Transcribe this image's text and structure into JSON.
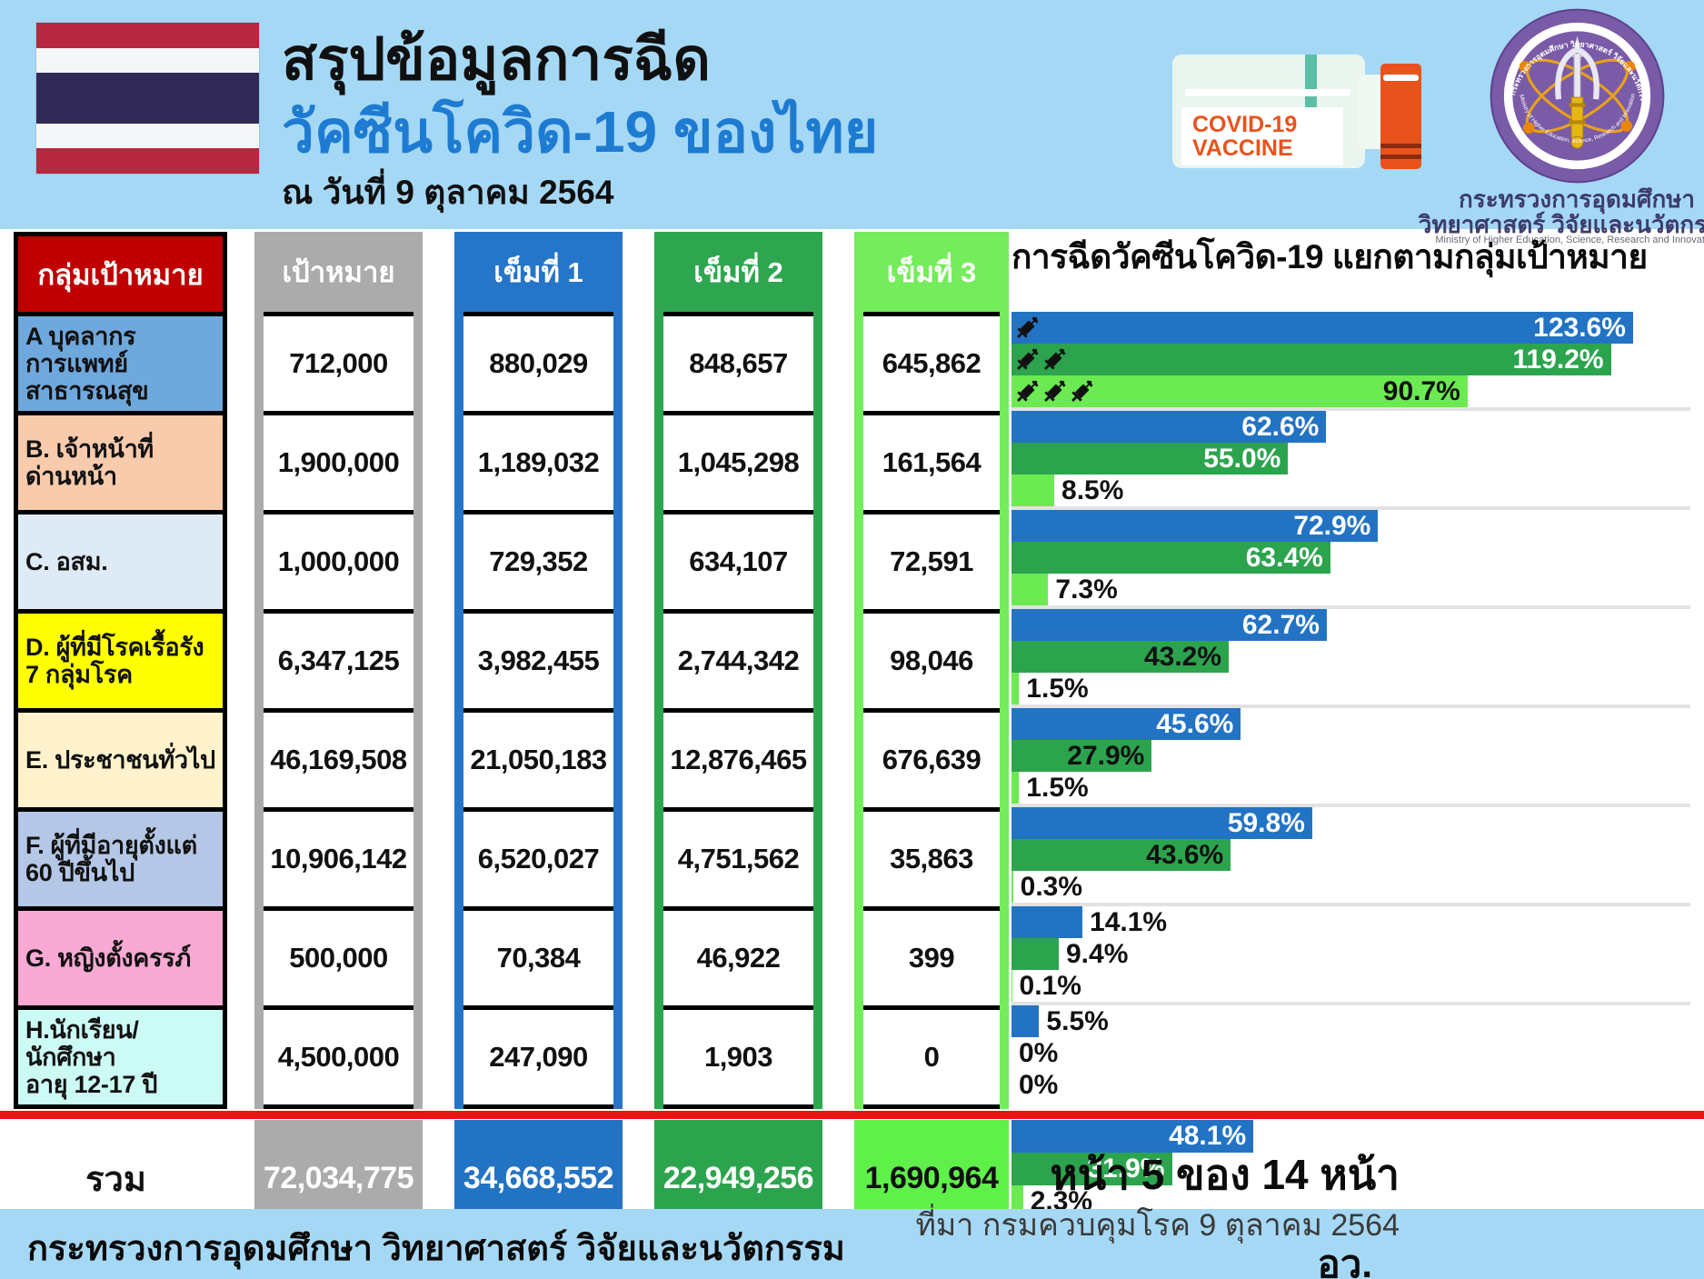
{
  "header": {
    "title_line1": "สรุปข้อมูลการฉีด",
    "title_line2": "วัคซีนโควิด-19 ของไทย",
    "date_line": "ณ วันที่ 9 ตุลาคม 2564",
    "vial": {
      "label_line1": "COVID-19",
      "label_line2": "VACCINE"
    },
    "logo": {
      "ring_text_top": "กระทรวงการอุดมศึกษา วิทยาศาสตร์ วิจัยและนวัตกรรม",
      "ring_text_bottom": "Ministry of Higher Education, Science, Research and Innovation",
      "name_line1": "กระทรวงการอุดมศึกษา",
      "name_line2": "วิทยาศาสตร์ วิจัยและนวัตกรรม",
      "name_line3": "Ministry of Higher Education, Science, Research and Innovation"
    }
  },
  "colors": {
    "band_blue": "#A5D8F5",
    "title_blue": "#1E7BD2",
    "header_red": "#C00000",
    "gray": "#ABABAB",
    "dose1_blue": "#2575C8",
    "dose2_green": "#2EA64F",
    "dose3_light_green": "#74EC5B",
    "bar_blue": "#2373C4",
    "bar_green": "#2CA44E",
    "bar_light_green": "#6BEA51",
    "total_dose3_green": "#5FF04A",
    "red_line": "#EE1212"
  },
  "table": {
    "headers": {
      "group": "กลุ่มเป้าหมาย",
      "target": "เป้าหมาย",
      "dose1": "เข็มที่ 1",
      "dose2": "เข็มที่ 2",
      "dose3": "เข็มที่ 3"
    },
    "headers_bg": {
      "group": "#C00000",
      "target": "#ABABAB",
      "dose1": "#2575C8",
      "dose2": "#2EA64F",
      "dose3": "#74EC5B"
    },
    "rows": [
      {
        "group": "A บุคลากร\nการแพทย์\nสาธารณสุข",
        "bg": "#6FA8DC",
        "target": "712,000",
        "dose1": "880,029",
        "dose2": "848,657",
        "dose3": "645,862"
      },
      {
        "group": "B. เจ้าหน้าที่\nด่านหน้า",
        "bg": "#F8CBAD",
        "target": "1,900,000",
        "dose1": "1,189,032",
        "dose2": "1,045,298",
        "dose3": "161,564"
      },
      {
        "group": "C. อสม.",
        "bg": "#DEEAF6",
        "target": "1,000,000",
        "dose1": "729,352",
        "dose2": "634,107",
        "dose3": "72,591"
      },
      {
        "group": "D. ผู้ที่มีโรคเรื้อรัง\n7 กลุ่มโรค",
        "bg": "#FFFF00",
        "target": "6,347,125",
        "dose1": "3,982,455",
        "dose2": "2,744,342",
        "dose3": "98,046"
      },
      {
        "group": "E. ประชาชนทั่วไป",
        "bg": "#FFF2CC",
        "target": "46,169,508",
        "dose1": "21,050,183",
        "dose2": "12,876,465",
        "dose3": "676,639"
      },
      {
        "group": "F. ผู้ที่มีอายุตั้งแต่\n60 ปีขึ้นไป",
        "bg": "#B4C7E7",
        "target": "10,906,142",
        "dose1": "6,520,027",
        "dose2": "4,751,562",
        "dose3": "35,863"
      },
      {
        "group": "G. หญิงตั้งครรภ์",
        "bg": "#F8A9D4",
        "target": "500,000",
        "dose1": "70,384",
        "dose2": "46,922",
        "dose3": "399"
      },
      {
        "group": "H.นักเรียน/\nนักศึกษา\nอายุ 12-17 ปี",
        "bg": "#CCFBF5",
        "target": "4,500,000",
        "dose1": "247,090",
        "dose2": "1,903",
        "dose3": "0"
      }
    ],
    "total": {
      "label": "รวม",
      "target": {
        "value": "72,034,775",
        "bg": "#ABABAB"
      },
      "dose1": {
        "value": "34,668,552",
        "bg": "#2373C4"
      },
      "dose2": {
        "value": "22,949,256",
        "bg": "#2CA44E"
      },
      "dose3": {
        "value": "1,690,964",
        "bg": "#5FF04A"
      }
    }
  },
  "chart": {
    "title": "การฉีดวัคซีนโควิด-19 แยกตามกลุ่มเป้าหมาย",
    "groups": [
      {
        "bars": [
          {
            "pct": 123.6,
            "label": "123.6%",
            "pos": "in",
            "label_color": "#FFFFFF",
            "color": "#2373C4"
          },
          {
            "pct": 119.2,
            "label": "119.2%",
            "pos": "in",
            "label_color": "#FFFFFF",
            "color": "#2CA44E"
          },
          {
            "pct": 90.7,
            "label": "90.7%",
            "pos": "in",
            "label_color": "#111111",
            "color": "#6BEA51"
          }
        ]
      },
      {
        "bars": [
          {
            "pct": 62.6,
            "label": "62.6%",
            "pos": "in",
            "label_color": "#FFFFFF",
            "color": "#2373C4"
          },
          {
            "pct": 55.0,
            "label": "55.0%",
            "pos": "in",
            "label_color": "#FFFFFF",
            "color": "#2CA44E"
          },
          {
            "pct": 8.5,
            "label": "8.5%",
            "pos": "out",
            "label_color": "#111111",
            "color": "#6BEA51"
          }
        ]
      },
      {
        "bars": [
          {
            "pct": 72.9,
            "label": "72.9%",
            "pos": "in",
            "label_color": "#FFFFFF",
            "color": "#2373C4"
          },
          {
            "pct": 63.4,
            "label": "63.4%",
            "pos": "in",
            "label_color": "#FFFFFF",
            "color": "#2CA44E"
          },
          {
            "pct": 7.3,
            "label": "7.3%",
            "pos": "out",
            "label_color": "#111111",
            "color": "#6BEA51"
          }
        ]
      },
      {
        "bars": [
          {
            "pct": 62.7,
            "label": "62.7%",
            "pos": "in",
            "label_color": "#FFFFFF",
            "color": "#2373C4"
          },
          {
            "pct": 43.2,
            "label": "43.2%",
            "pos": "in",
            "label_color": "#111111",
            "color": "#2CA44E"
          },
          {
            "pct": 1.5,
            "label": "1.5%",
            "pos": "out",
            "label_color": "#111111",
            "color": "#6BEA51"
          }
        ]
      },
      {
        "bars": [
          {
            "pct": 45.6,
            "label": "45.6%",
            "pos": "in",
            "label_color": "#FFFFFF",
            "color": "#2373C4"
          },
          {
            "pct": 27.9,
            "label": "27.9%",
            "pos": "in",
            "label_color": "#111111",
            "color": "#2CA44E"
          },
          {
            "pct": 1.5,
            "label": "1.5%",
            "pos": "out",
            "label_color": "#111111",
            "color": "#6BEA51"
          }
        ]
      },
      {
        "bars": [
          {
            "pct": 59.8,
            "label": "59.8%",
            "pos": "in",
            "label_color": "#FFFFFF",
            "color": "#2373C4"
          },
          {
            "pct": 43.6,
            "label": "43.6%",
            "pos": "in",
            "label_color": "#111111",
            "color": "#2CA44E"
          },
          {
            "pct": 0.3,
            "label": "0.3%",
            "pos": "out",
            "label_color": "#111111",
            "color": "#6BEA51"
          }
        ]
      },
      {
        "bars": [
          {
            "pct": 14.1,
            "label": "14.1%",
            "pos": "out",
            "label_color": "#111111",
            "color": "#2373C4"
          },
          {
            "pct": 9.4,
            "label": "9.4%",
            "pos": "out",
            "label_color": "#111111",
            "color": "#2CA44E"
          },
          {
            "pct": 0.1,
            "label": "0.1%",
            "pos": "out",
            "label_color": "#111111",
            "color": "#6BEA51"
          }
        ]
      },
      {
        "bars": [
          {
            "pct": 5.5,
            "label": "5.5%",
            "pos": "out",
            "label_color": "#111111",
            "color": "#2373C4"
          },
          {
            "pct": 0,
            "label": "0%",
            "pos": "out",
            "label_color": "#111111",
            "color": "#2CA44E"
          },
          {
            "pct": 0,
            "label": "0%",
            "pos": "out",
            "label_color": "#111111",
            "color": "#6BEA51"
          }
        ]
      }
    ],
    "total_bars": [
      {
        "pct": 48.1,
        "label": "48.1%",
        "pos": "in",
        "label_color": "#FFFFFF",
        "color": "#2373C4"
      },
      {
        "pct": 31.9,
        "label": "31.9%",
        "pos": "in",
        "label_color": "#FFFFFF",
        "color": "#2CA44E"
      },
      {
        "pct": 2.3,
        "label": "2.3%",
        "pos": "out",
        "label_color": "#111111",
        "color": "#6BEA51"
      }
    ]
  },
  "chart_data": {
    "type": "bar",
    "orientation": "horizontal",
    "title": "การฉีดวัคซีนโควิด-19 แยกตามกลุ่มเป้าหมาย",
    "categories": [
      "A บุคลากรการแพทย์ สาธารณสุข",
      "B. เจ้าหน้าที่ด่านหน้า",
      "C. อสม.",
      "D. ผู้ที่มีโรคเรื้อรัง 7 กลุ่มโรค",
      "E. ประชาชนทั่วไป",
      "F. ผู้ที่มีอายุตั้งแต่ 60 ปีขึ้นไป",
      "G. หญิงตั้งครรภ์",
      "H.นักเรียน/นักศึกษา อายุ 12-17 ปี",
      "รวม"
    ],
    "series": [
      {
        "name": "เข็มที่ 1",
        "color": "#2373C4",
        "values": [
          123.6,
          62.6,
          72.9,
          62.7,
          45.6,
          59.8,
          14.1,
          5.5,
          48.1
        ]
      },
      {
        "name": "เข็มที่ 2",
        "color": "#2CA44E",
        "values": [
          119.2,
          55.0,
          63.4,
          43.2,
          27.9,
          43.6,
          9.4,
          0,
          31.9
        ]
      },
      {
        "name": "เข็มที่ 3",
        "color": "#6BEA51",
        "values": [
          90.7,
          8.5,
          7.3,
          1.5,
          1.5,
          0.3,
          0.1,
          0,
          2.3
        ]
      }
    ],
    "unit": "%",
    "xlim": [
      0,
      135
    ],
    "grid": false,
    "legend": "none",
    "targets": [
      712000,
      1900000,
      1000000,
      6347125,
      46169508,
      10906142,
      500000,
      4500000,
      72034775
    ],
    "dose1_counts": [
      880029,
      1189032,
      729352,
      3982455,
      21050183,
      6520027,
      70384,
      247090,
      34668552
    ],
    "dose2_counts": [
      848657,
      1045298,
      634107,
      2744342,
      12876465,
      4751562,
      46922,
      1903,
      22949256
    ],
    "dose3_counts": [
      645862,
      161564,
      72591,
      98046,
      676639,
      35863,
      399,
      0,
      1690964
    ]
  },
  "footer": {
    "ministry": "กระทรวงการอุดมศึกษา วิทยาศาสตร์ วิจัยและนวัตกรรม",
    "page_label": "หน้า 5 ของ 14 หน้า",
    "source": "ที่มา กรมควบคุมโรค 9 ตุลาคม 2564",
    "abbr": "อว."
  }
}
